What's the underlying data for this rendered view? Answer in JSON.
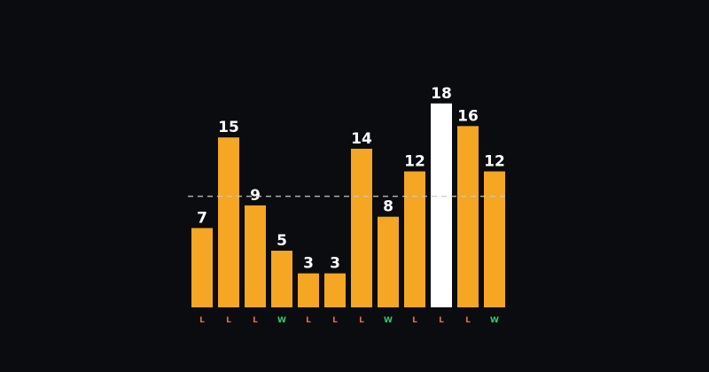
{
  "chart_data": {
    "type": "bar",
    "categories": [
      "L",
      "L",
      "L",
      "W",
      "L",
      "L",
      "L",
      "W",
      "L",
      "L",
      "L",
      "W"
    ],
    "values": [
      7,
      15,
      9,
      5,
      3,
      3,
      14,
      8,
      12,
      18,
      16,
      12
    ],
    "highlight_index": 9,
    "reference_line": 9.8,
    "ylim": [
      0,
      19
    ],
    "title": "",
    "xlabel": "",
    "ylabel": "",
    "grid": false,
    "legend": "none",
    "colors": {
      "background": "#0b0c10",
      "bar": "#f5a623",
      "highlight": "#ffffff",
      "value_label": "#ffffff",
      "loss": "#e8694a",
      "win": "#2ecc71",
      "reference_line": "#c9c9c9"
    }
  }
}
